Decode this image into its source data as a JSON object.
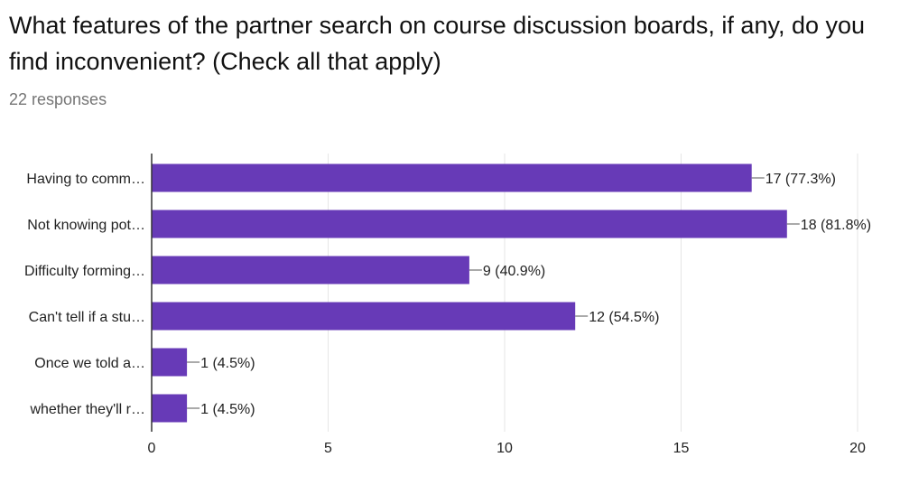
{
  "question": {
    "title": "What features of the partner search on course discussion boards, if any, do you find inconvenient? (Check all that apply)",
    "responses": "22 responses"
  },
  "colors": {
    "bar": "#673ab7",
    "grid": "#e6e6e6",
    "axis": "#333333"
  },
  "chart_data": {
    "type": "bar",
    "orientation": "horizontal",
    "categories": [
      "Having to comm…",
      "Not knowing pot…",
      "Difficulty forming…",
      "Can't tell if a stu…",
      "Once we told a…",
      "whether they'll r…"
    ],
    "values": [
      17,
      18,
      9,
      12,
      1,
      1
    ],
    "data_labels": [
      "17 (77.3%)",
      "18 (81.8%)",
      "9 (40.9%)",
      "12 (54.5%)",
      "1 (4.5%)",
      "1 (4.5%)"
    ],
    "xlim": [
      0,
      20
    ],
    "xticks": [
      0,
      5,
      10,
      15,
      20
    ],
    "grid": true,
    "legend": "none"
  }
}
